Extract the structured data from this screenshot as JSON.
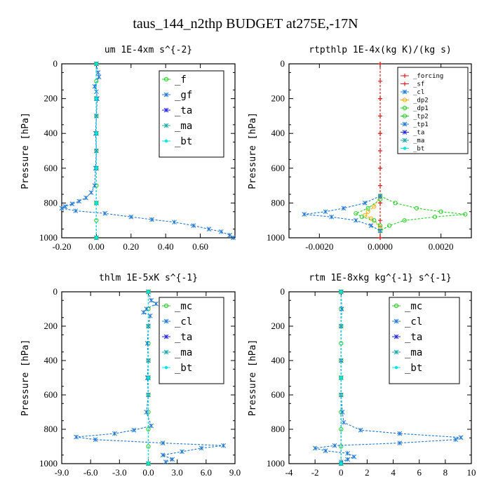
{
  "title": "taus_144_n2thp  BUDGET at275E,-17N",
  "colors": {
    "f": "#22cc22",
    "gf": "#1f77d0",
    "ta": "#2222dd",
    "ma": "#1aa6a6",
    "bt": "#00e6e6",
    "mc": "#22cc22",
    "cl": "#1f77d0",
    "forcing": "#dd2222",
    "sf": "#dd2222",
    "dp2": "#ffaa00",
    "dp1": "#22cc22",
    "tp2": "#22cc22",
    "tp1": "#1f77d0"
  },
  "chart_data": [
    {
      "type": "line",
      "title": "um  1E-4xm s^{-2}",
      "ylabel": "Pressure [hPa]",
      "xlim": [
        -0.2,
        0.8
      ],
      "ylim": [
        1000,
        0
      ],
      "xticks": [
        -0.2,
        0.0,
        0.2,
        0.4,
        0.6
      ],
      "xtick_labels": [
        "-0.20",
        "0.00",
        "0.20",
        "0.40",
        "0.60"
      ],
      "yticks": [
        0,
        200,
        400,
        600,
        800,
        1000
      ],
      "ytick_labels": [
        "0",
        "200",
        "400",
        "600",
        "800",
        "1000"
      ],
      "legend": {
        "position": "top-right",
        "entries": [
          "_f",
          "_gf",
          "_ta",
          "_ma",
          "_bt"
        ]
      },
      "series": [
        {
          "name": "_f",
          "key": "f",
          "points": [
            [
              0,
              0
            ],
            [
              0,
              100
            ],
            [
              0,
              200
            ],
            [
              0,
              300
            ],
            [
              0,
              400
            ],
            [
              0,
              500
            ],
            [
              0,
              600
            ],
            [
              0,
              700
            ],
            [
              0,
              800
            ],
            [
              0,
              900
            ],
            [
              0,
              1000
            ]
          ]
        },
        {
          "name": "_gf",
          "key": "gf",
          "points": [
            [
              0,
              0
            ],
            [
              0.01,
              50
            ],
            [
              0.015,
              75
            ],
            [
              -0.01,
              130
            ],
            [
              0,
              160
            ],
            [
              0.005,
              200
            ],
            [
              0,
              300
            ],
            [
              -0.005,
              400
            ],
            [
              0,
              500
            ],
            [
              -0.005,
              600
            ],
            [
              -0.01,
              700
            ],
            [
              -0.03,
              740
            ],
            [
              -0.06,
              770
            ],
            [
              -0.1,
              790
            ],
            [
              -0.14,
              805
            ],
            [
              -0.18,
              820
            ],
            [
              -0.2,
              830
            ],
            [
              -0.12,
              845
            ],
            [
              0.05,
              860
            ],
            [
              0.2,
              880
            ],
            [
              0.32,
              895
            ],
            [
              0.45,
              910
            ],
            [
              0.56,
              930
            ],
            [
              0.65,
              950
            ],
            [
              0.72,
              965
            ],
            [
              0.77,
              985
            ],
            [
              0.79,
              1000
            ]
          ]
        },
        {
          "name": "_ta",
          "key": "ta",
          "points": [
            [
              0,
              0
            ],
            [
              0,
              200
            ],
            [
              0,
              400
            ],
            [
              0,
              600
            ],
            [
              0,
              800
            ],
            [
              0,
              1000
            ]
          ]
        },
        {
          "name": "_ma",
          "key": "ma",
          "points": [
            [
              0,
              0
            ],
            [
              0,
              200
            ],
            [
              0,
              400
            ],
            [
              0,
              600
            ],
            [
              0,
              800
            ],
            [
              0,
              1000
            ]
          ]
        },
        {
          "name": "_bt",
          "key": "bt",
          "points": [
            [
              0,
              0
            ],
            [
              0,
              200
            ],
            [
              0,
              400
            ],
            [
              0,
              600
            ],
            [
              0,
              800
            ],
            [
              0,
              1000
            ]
          ]
        }
      ]
    },
    {
      "type": "line",
      "title": "rtpthlp  1E-4x(kg K)/(kg s)",
      "ylabel": "Pressure [hPa]",
      "xlim": [
        -0.003,
        0.003
      ],
      "ylim": [
        1000,
        0
      ],
      "xticks": [
        -0.002,
        0.0,
        0.002
      ],
      "xtick_labels": [
        "-0.0020",
        "0.0000",
        "0.0020"
      ],
      "yticks": [
        0,
        200,
        400,
        600,
        800,
        1000
      ],
      "ytick_labels": [
        "0",
        "200",
        "400",
        "600",
        "800",
        "1000"
      ],
      "legend": {
        "position": "top-right",
        "entries": [
          "_forcing",
          "_sf",
          "_cl",
          "_dp2",
          "_dp1",
          "_tp2",
          "_tp1",
          "_ta",
          "_ma",
          "_bt"
        ]
      },
      "series": [
        {
          "name": "_forcing",
          "key": "forcing",
          "points": [
            [
              0,
              0
            ],
            [
              0,
              100
            ],
            [
              0,
              200
            ],
            [
              0,
              300
            ],
            [
              0,
              400
            ],
            [
              0,
              500
            ],
            [
              0,
              600
            ],
            [
              0,
              700
            ],
            [
              0,
              800
            ],
            [
              0,
              900
            ],
            [
              0,
              1000
            ]
          ]
        },
        {
          "name": "_sf",
          "key": "sf",
          "points": [
            [
              0,
              0
            ],
            [
              0,
              200
            ],
            [
              0,
              400
            ],
            [
              0,
              600
            ],
            [
              0,
              800
            ],
            [
              0,
              1000
            ]
          ]
        },
        {
          "name": "_dp2",
          "key": "dp2",
          "points": [
            [
              0,
              760
            ],
            [
              -0.0002,
              820
            ],
            [
              -0.0004,
              850
            ],
            [
              -0.0005,
              870
            ],
            [
              -0.0003,
              890
            ],
            [
              0,
              940
            ]
          ]
        },
        {
          "name": "_dp1",
          "key": "dp1",
          "points": [
            [
              0,
              760
            ],
            [
              0.0005,
              800
            ],
            [
              0.0012,
              830
            ],
            [
              0.002,
              850
            ],
            [
              0.0028,
              865
            ],
            [
              0.0018,
              880
            ],
            [
              0.0008,
              900
            ],
            [
              0.0003,
              930
            ],
            [
              0,
              960
            ]
          ]
        },
        {
          "name": "_tp2",
          "key": "tp2",
          "points": [
            [
              0,
              780
            ],
            [
              -0.0004,
              830
            ],
            [
              -0.0008,
              860
            ],
            [
              -0.0006,
              880
            ],
            [
              -0.0002,
              900
            ],
            [
              0,
              930
            ]
          ]
        },
        {
          "name": "_tp1",
          "key": "tp1",
          "points": [
            [
              0,
              760
            ],
            [
              -0.0005,
              800
            ],
            [
              -0.0012,
              830
            ],
            [
              -0.0018,
              850
            ],
            [
              -0.0025,
              865
            ],
            [
              -0.0016,
              880
            ],
            [
              -0.0008,
              900
            ],
            [
              -0.0003,
              930
            ],
            [
              0,
              960
            ]
          ]
        }
      ]
    },
    {
      "type": "line",
      "title": "thlm  1E-5xK s^{-1}",
      "ylabel": "Pressure [hPa]",
      "xlim": [
        -9.0,
        9.0
      ],
      "ylim": [
        1000,
        0
      ],
      "xticks": [
        -9,
        -6,
        -3,
        0,
        3,
        6,
        9
      ],
      "xtick_labels": [
        "-9.0",
        "-6.0",
        "-3.0",
        "0.0",
        "3.0",
        "6.0",
        "9.0"
      ],
      "yticks": [
        0,
        200,
        400,
        600,
        800,
        1000
      ],
      "ytick_labels": [
        "0",
        "200",
        "400",
        "600",
        "800",
        "1000"
      ],
      "legend": {
        "position": "top-right",
        "entries": [
          "_mc",
          "_cl",
          "_ta",
          "_ma",
          "_bt"
        ]
      },
      "series": [
        {
          "name": "_mc",
          "key": "mc",
          "points": [
            [
              0,
              0
            ],
            [
              0,
              100
            ],
            [
              0,
              200
            ],
            [
              0,
              300
            ],
            [
              0,
              400
            ],
            [
              0,
              500
            ],
            [
              0,
              600
            ],
            [
              0,
              700
            ],
            [
              0,
              800
            ],
            [
              0,
              900
            ],
            [
              0,
              1000
            ]
          ]
        },
        {
          "name": "_cl",
          "key": "cl",
          "points": [
            [
              0,
              0
            ],
            [
              0.3,
              50
            ],
            [
              0.8,
              70
            ],
            [
              -0.2,
              100
            ],
            [
              -0.5,
              120
            ],
            [
              0.2,
              140
            ],
            [
              0,
              200
            ],
            [
              -0.1,
              300
            ],
            [
              0,
              400
            ],
            [
              -0.1,
              500
            ],
            [
              0,
              600
            ],
            [
              -0.2,
              700
            ],
            [
              0.3,
              780
            ],
            [
              -1.5,
              805
            ],
            [
              -3.5,
              825
            ],
            [
              -7.5,
              845
            ],
            [
              -5.5,
              860
            ],
            [
              1.5,
              880
            ],
            [
              7.8,
              895
            ],
            [
              5.5,
              910
            ],
            [
              3.5,
              930
            ],
            [
              1.5,
              950
            ],
            [
              2.5,
              975
            ],
            [
              1.8,
              990
            ]
          ]
        },
        {
          "name": "_ta",
          "key": "ta",
          "points": [
            [
              0,
              0
            ],
            [
              0,
              500
            ],
            [
              0,
              1000
            ]
          ]
        },
        {
          "name": "_ma",
          "key": "ma",
          "points": [
            [
              0,
              0
            ],
            [
              0,
              500
            ],
            [
              0,
              1000
            ]
          ]
        },
        {
          "name": "_bt",
          "key": "bt",
          "points": [
            [
              0,
              0
            ],
            [
              0,
              500
            ],
            [
              0,
              1000
            ]
          ]
        }
      ]
    },
    {
      "type": "line",
      "title": "rtm  1E-8xkg kg^{-1} s^{-1}",
      "ylabel": "Pressure [hPa]",
      "xlim": [
        -4,
        10
      ],
      "ylim": [
        1000,
        0
      ],
      "xticks": [
        -4,
        -2,
        0,
        2,
        4,
        6,
        8,
        10
      ],
      "xtick_labels": [
        "-4",
        "-2",
        "0",
        "2",
        "4",
        "6",
        "8",
        "10"
      ],
      "yticks": [
        0,
        200,
        400,
        600,
        800,
        1000
      ],
      "ytick_labels": [
        "0",
        "200",
        "400",
        "600",
        "800",
        "1000"
      ],
      "legend": {
        "position": "top-right",
        "entries": [
          "_mc",
          "_cl",
          "_ta",
          "_ma",
          "_bt"
        ]
      },
      "series": [
        {
          "name": "_mc",
          "key": "mc",
          "points": [
            [
              0,
              0
            ],
            [
              0,
              100
            ],
            [
              0,
              200
            ],
            [
              0,
              300
            ],
            [
              0,
              400
            ],
            [
              0,
              500
            ],
            [
              0,
              600
            ],
            [
              0,
              700
            ],
            [
              0,
              800
            ],
            [
              0,
              900
            ],
            [
              0,
              1000
            ]
          ]
        },
        {
          "name": "_cl",
          "key": "cl",
          "points": [
            [
              0,
              0
            ],
            [
              0.05,
              100
            ],
            [
              0,
              200
            ],
            [
              0,
              400
            ],
            [
              0,
              600
            ],
            [
              0.1,
              700
            ],
            [
              0.2,
              760
            ],
            [
              1.5,
              805
            ],
            [
              4.5,
              825
            ],
            [
              9.2,
              848
            ],
            [
              8.8,
              860
            ],
            [
              4.5,
              880
            ],
            [
              -0.5,
              895
            ],
            [
              -2.0,
              910
            ],
            [
              -1.2,
              925
            ],
            [
              0.5,
              940
            ],
            [
              1.0,
              960
            ],
            [
              0.5,
              975
            ],
            [
              0,
              990
            ]
          ]
        },
        {
          "name": "_ta",
          "key": "ta",
          "points": [
            [
              0,
              0
            ],
            [
              0,
              500
            ],
            [
              0,
              1000
            ]
          ]
        },
        {
          "name": "_ma",
          "key": "ma",
          "points": [
            [
              0,
              0
            ],
            [
              0,
              500
            ],
            [
              0,
              1000
            ]
          ]
        },
        {
          "name": "_bt",
          "key": "bt",
          "points": [
            [
              0,
              0
            ],
            [
              0,
              500
            ],
            [
              0,
              1000
            ]
          ]
        }
      ]
    }
  ]
}
